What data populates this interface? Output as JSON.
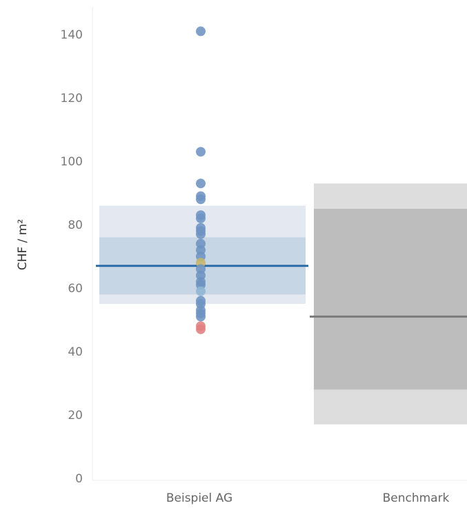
{
  "chart_data": {
    "type": "scatter",
    "ylabel": "CHF / m²",
    "ylim": [
      0,
      145
    ],
    "yticks": [
      0,
      20,
      40,
      60,
      80,
      100,
      120,
      140
    ],
    "categories": [
      "Beispiel AG",
      "Benchmark"
    ],
    "grid": false,
    "bands": [
      {
        "category": "Beispiel AG",
        "outer": [
          55,
          86
        ],
        "inner": [
          58,
          76
        ],
        "median": 67,
        "outer_color": "#e3e8f1",
        "inner_color": "#c6d6e5",
        "median_color": "#2a6aa5"
      },
      {
        "category": "Benchmark",
        "outer": [
          17,
          93
        ],
        "inner": [
          28,
          85
        ],
        "median": 51,
        "outer_color": "#dddddd",
        "inner_color": "#bdbdbd",
        "median_color": "#7a7a7a"
      }
    ],
    "points": [
      {
        "category": "Beispiel AG",
        "y": 141,
        "color": "#6e93c2"
      },
      {
        "category": "Beispiel AG",
        "y": 103,
        "color": "#6e93c2"
      },
      {
        "category": "Beispiel AG",
        "y": 93,
        "color": "#6e93c2"
      },
      {
        "category": "Beispiel AG",
        "y": 89,
        "color": "#6e93c2"
      },
      {
        "category": "Beispiel AG",
        "y": 88,
        "color": "#6e93c2"
      },
      {
        "category": "Beispiel AG",
        "y": 83,
        "color": "#6e93c2"
      },
      {
        "category": "Beispiel AG",
        "y": 82,
        "color": "#6e93c2"
      },
      {
        "category": "Beispiel AG",
        "y": 79,
        "color": "#6e93c2"
      },
      {
        "category": "Beispiel AG",
        "y": 78,
        "color": "#6e93c2"
      },
      {
        "category": "Beispiel AG",
        "y": 77,
        "color": "#6e93c2"
      },
      {
        "category": "Beispiel AG",
        "y": 74,
        "color": "#6e93c2"
      },
      {
        "category": "Beispiel AG",
        "y": 72,
        "color": "#6e93c2"
      },
      {
        "category": "Beispiel AG",
        "y": 70,
        "color": "#6e93c2"
      },
      {
        "category": "Beispiel AG",
        "y": 68,
        "color": "#c8b56a"
      },
      {
        "category": "Beispiel AG",
        "y": 66,
        "color": "#6e93c2"
      },
      {
        "category": "Beispiel AG",
        "y": 64,
        "color": "#6e93c2"
      },
      {
        "category": "Beispiel AG",
        "y": 62,
        "color": "#6e93c2"
      },
      {
        "category": "Beispiel AG",
        "y": 61,
        "color": "#6e93c2"
      },
      {
        "category": "Beispiel AG",
        "y": 59,
        "color": "#8fb6d4"
      },
      {
        "category": "Beispiel AG",
        "y": 56,
        "color": "#6e93c2"
      },
      {
        "category": "Beispiel AG",
        "y": 55,
        "color": "#6e93c2"
      },
      {
        "category": "Beispiel AG",
        "y": 53,
        "color": "#6e93c2"
      },
      {
        "category": "Beispiel AG",
        "y": 52,
        "color": "#6e93c2"
      },
      {
        "category": "Beispiel AG",
        "y": 51,
        "color": "#6e93c2"
      },
      {
        "category": "Beispiel AG",
        "y": 48,
        "color": "#e07f7f"
      },
      {
        "category": "Beispiel AG",
        "y": 47,
        "color": "#e07f7f"
      }
    ]
  }
}
